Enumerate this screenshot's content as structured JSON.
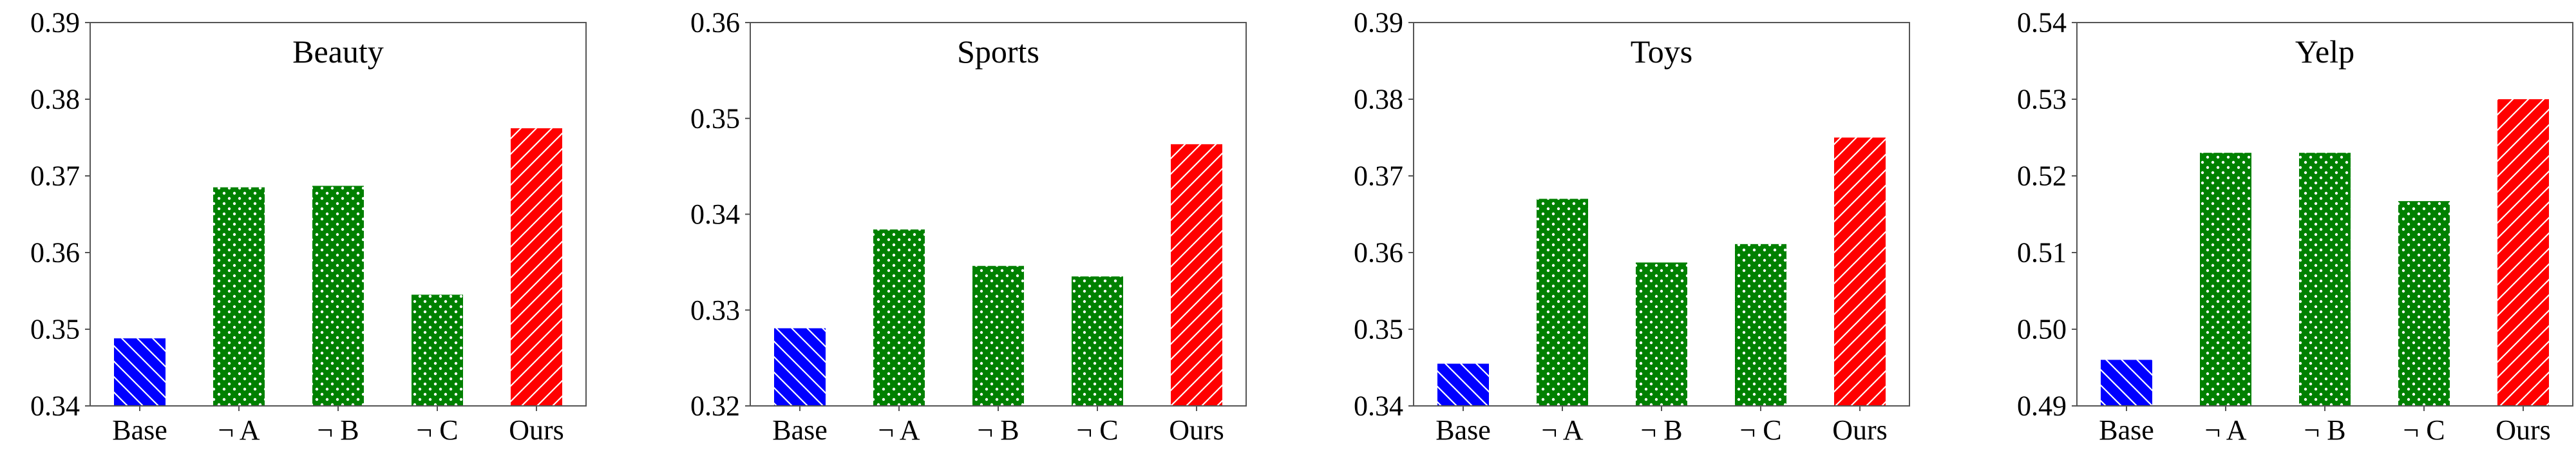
{
  "colors": {
    "base": "#0000ff",
    "ablation": "#008000",
    "ours": "#ff0000",
    "axis": "#555555"
  },
  "chart_data": [
    {
      "type": "bar",
      "title": "Beauty",
      "categories": [
        "Base",
        "¬ A",
        "¬ B",
        "¬ C",
        "Ours"
      ],
      "values": [
        0.3488,
        0.3685,
        0.3687,
        0.3545,
        0.3762
      ],
      "ylim": [
        0.34,
        0.39
      ],
      "yticks": [
        "0.34",
        "0.35",
        "0.36",
        "0.37",
        "0.38",
        "0.39"
      ],
      "xlabel": "",
      "ylabel": "",
      "grid": false
    },
    {
      "type": "bar",
      "title": "Sports",
      "categories": [
        "Base",
        "¬ A",
        "¬ B",
        "¬ C",
        "Ours"
      ],
      "values": [
        0.3281,
        0.3384,
        0.3346,
        0.3335,
        0.3473
      ],
      "ylim": [
        0.32,
        0.36
      ],
      "yticks": [
        "0.32",
        "0.33",
        "0.34",
        "0.35",
        "0.36"
      ],
      "xlabel": "",
      "ylabel": "",
      "grid": false
    },
    {
      "type": "bar",
      "title": "Toys",
      "categories": [
        "Base",
        "¬ A",
        "¬ B",
        "¬ C",
        "Ours"
      ],
      "values": [
        0.3455,
        0.367,
        0.3587,
        0.3611,
        0.375
      ],
      "ylim": [
        0.34,
        0.39
      ],
      "yticks": [
        "0.34",
        "0.35",
        "0.36",
        "0.37",
        "0.38",
        "0.39"
      ],
      "xlabel": "",
      "ylabel": "",
      "grid": false
    },
    {
      "type": "bar",
      "title": "Yelp",
      "categories": [
        "Base",
        "¬ A",
        "¬ B",
        "¬ C",
        "Ours"
      ],
      "values": [
        0.496,
        0.523,
        0.523,
        0.5167,
        0.53
      ],
      "ylim": [
        0.49,
        0.54
      ],
      "yticks": [
        "0.49",
        "0.50",
        "0.51",
        "0.52",
        "0.53",
        "0.54"
      ],
      "xlabel": "",
      "ylabel": "",
      "grid": false
    }
  ]
}
